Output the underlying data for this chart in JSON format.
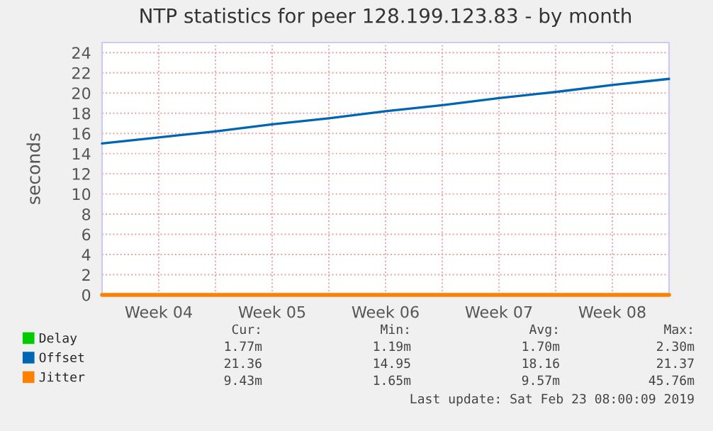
{
  "chart_data": {
    "type": "line",
    "title": "NTP statistics for peer 128.199.123.83 - by month",
    "ylabel": "seconds",
    "categories": [
      null,
      "Week 04",
      null,
      "Week 05",
      null,
      "Week 06",
      null,
      "Week 07",
      null,
      "Week 08",
      null
    ],
    "series": [
      {
        "name": "Delay",
        "color": "#00cc00",
        "values": [
          null,
          null,
          null,
          null,
          null,
          null,
          null,
          null,
          null,
          null,
          null
        ]
      },
      {
        "name": "Offset",
        "color": "#0066b3",
        "values": [
          15.0,
          15.6,
          16.2,
          16.9,
          17.5,
          18.2,
          18.8,
          19.5,
          20.1,
          20.8,
          21.4
        ]
      },
      {
        "name": "Jitter",
        "color": "#ff8000",
        "values": [
          0,
          0,
          0,
          0,
          0,
          0,
          0,
          0,
          0,
          0,
          0
        ]
      }
    ],
    "ylim": [
      0,
      25
    ],
    "yticks": [
      0,
      2,
      4,
      6,
      8,
      10,
      12,
      14,
      16,
      18,
      20,
      22,
      24
    ],
    "grid": true,
    "legend": "bottom left",
    "annotations": [
      "Cur:",
      "Min:",
      "Avg:",
      "Max:",
      "1.77m",
      "1.19m",
      "1.70m",
      "2.30m",
      "21.36",
      "14.95",
      "18.16",
      "21.37",
      "9.43m",
      "1.65m",
      "9.57m",
      "45.76m",
      "Last update: Sat Feb 23 08:00:09 2019"
    ]
  }
}
